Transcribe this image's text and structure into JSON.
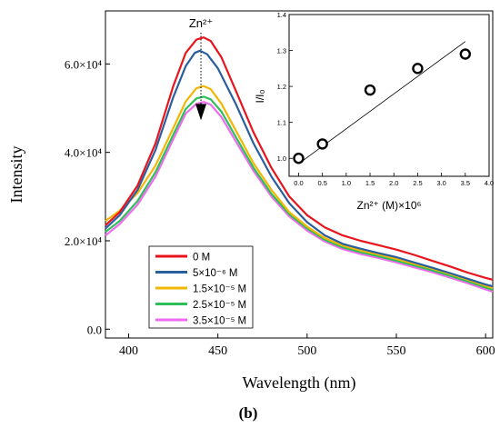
{
  "caption": "(b)",
  "chart_data": [
    {
      "type": "line",
      "xlabel": "Wavelength (nm)",
      "ylabel": "Intensity",
      "xlim": [
        387,
        604
      ],
      "ylim": [
        -2000,
        72000
      ],
      "xticks": [
        400,
        450,
        500,
        550,
        600
      ],
      "yticks": [
        {
          "value": 0,
          "label": "0.0"
        },
        {
          "value": 20000,
          "label": "2.0×10⁴"
        },
        {
          "value": 40000,
          "label": "4.0×10⁴"
        },
        {
          "value": 60000,
          "label": "6.0×10⁴"
        }
      ],
      "annotation": {
        "text": "Zn²⁺",
        "x": 440.5,
        "y_from": 65000,
        "y_to": 48500
      },
      "legend_position": "bottom-left",
      "colors": [
        "#e8141c",
        "#2a5f9e",
        "#f2b705",
        "#2fbf5a",
        "#ef6cf0"
      ],
      "series": [
        {
          "name": "0 M",
          "color": "#e8141c",
          "x": [
            387,
            395,
            405,
            415,
            425,
            432,
            438,
            442,
            446,
            452,
            460,
            470,
            480,
            490,
            500,
            510,
            520,
            530,
            540,
            550,
            560,
            570,
            580,
            590,
            600,
            604
          ],
          "y": [
            23500,
            26500,
            32500,
            42000,
            55000,
            62500,
            65500,
            66000,
            65200,
            61500,
            54000,
            44500,
            36500,
            30000,
            25800,
            23000,
            21200,
            20000,
            19000,
            18000,
            16800,
            15500,
            14200,
            12800,
            11600,
            11200
          ]
        },
        {
          "name": "5×10⁻⁶ M",
          "color": "#2a5f9e",
          "x": [
            387,
            395,
            405,
            415,
            425,
            432,
            437,
            440,
            444,
            450,
            460,
            470,
            480,
            490,
            500,
            510,
            520,
            530,
            540,
            550,
            560,
            570,
            580,
            590,
            600,
            604
          ],
          "y": [
            22800,
            25800,
            31500,
            40500,
            52500,
            59500,
            62500,
            63000,
            62200,
            59000,
            51000,
            42000,
            34500,
            28500,
            24200,
            21200,
            19300,
            18200,
            17200,
            16300,
            15100,
            13900,
            12700,
            11400,
            10100,
            9700
          ]
        },
        {
          "name": "1.5×10⁻⁵ M",
          "color": "#f2b705",
          "x": [
            387,
            395,
            405,
            415,
            425,
            432,
            438,
            442,
            446,
            452,
            460,
            470,
            480,
            490,
            500,
            510,
            520,
            530,
            540,
            550,
            560,
            570,
            580,
            590,
            600,
            604
          ],
          "y": [
            24500,
            26800,
            30800,
            37000,
            45500,
            51500,
            54500,
            55000,
            54300,
            51000,
            45000,
            37500,
            31500,
            26500,
            23200,
            20600,
            18900,
            17800,
            16900,
            15900,
            14800,
            13700,
            12500,
            11200,
            9800,
            9300
          ]
        },
        {
          "name": "2.5×10⁻⁵ M",
          "color": "#2fbf5a",
          "x": [
            387,
            395,
            405,
            415,
            425,
            432,
            438,
            442,
            446,
            452,
            460,
            470,
            480,
            490,
            500,
            510,
            520,
            530,
            540,
            550,
            560,
            570,
            580,
            590,
            600,
            604
          ],
          "y": [
            22000,
            24500,
            29000,
            35500,
            44000,
            49800,
            52200,
            52600,
            52000,
            49200,
            43500,
            36500,
            30600,
            26000,
            22800,
            20200,
            18500,
            17400,
            16500,
            15500,
            14400,
            13300,
            12100,
            10800,
            9400,
            8900
          ]
        },
        {
          "name": "3.5×10⁻⁵ M",
          "color": "#ef6cf0",
          "x": [
            387,
            395,
            405,
            415,
            425,
            432,
            438,
            442,
            446,
            452,
            460,
            470,
            480,
            490,
            500,
            510,
            520,
            530,
            540,
            550,
            560,
            570,
            580,
            590,
            600,
            604
          ],
          "y": [
            21200,
            23800,
            28200,
            34500,
            43000,
            48800,
            51000,
            51400,
            50800,
            48000,
            42500,
            35800,
            30000,
            25500,
            22300,
            19800,
            18100,
            17000,
            16100,
            15100,
            14000,
            12900,
            11700,
            10400,
            9000,
            8500
          ]
        }
      ]
    },
    {
      "type": "scatter",
      "xlabel": "Zn²⁺ (M)×10⁶",
      "ylabel": "I/I₀",
      "xlim": [
        -0.2,
        4.0
      ],
      "ylim": [
        0.95,
        1.4
      ],
      "xticks": [
        "0.0",
        "0.5",
        "1.0",
        "1.5",
        "2.0",
        "2.5",
        "3.0",
        "3.5",
        "4.0"
      ],
      "yticks": [
        "1.0",
        "1.1",
        "1.2",
        "1.3",
        "1.4"
      ],
      "points": {
        "x": [
          0,
          0.5,
          1.5,
          2.5,
          3.5
        ],
        "y": [
          1.0,
          1.04,
          1.19,
          1.25,
          1.29
        ]
      },
      "fit_line": {
        "x": [
          0,
          3.5
        ],
        "y": [
          0.985,
          1.325
        ]
      }
    }
  ]
}
